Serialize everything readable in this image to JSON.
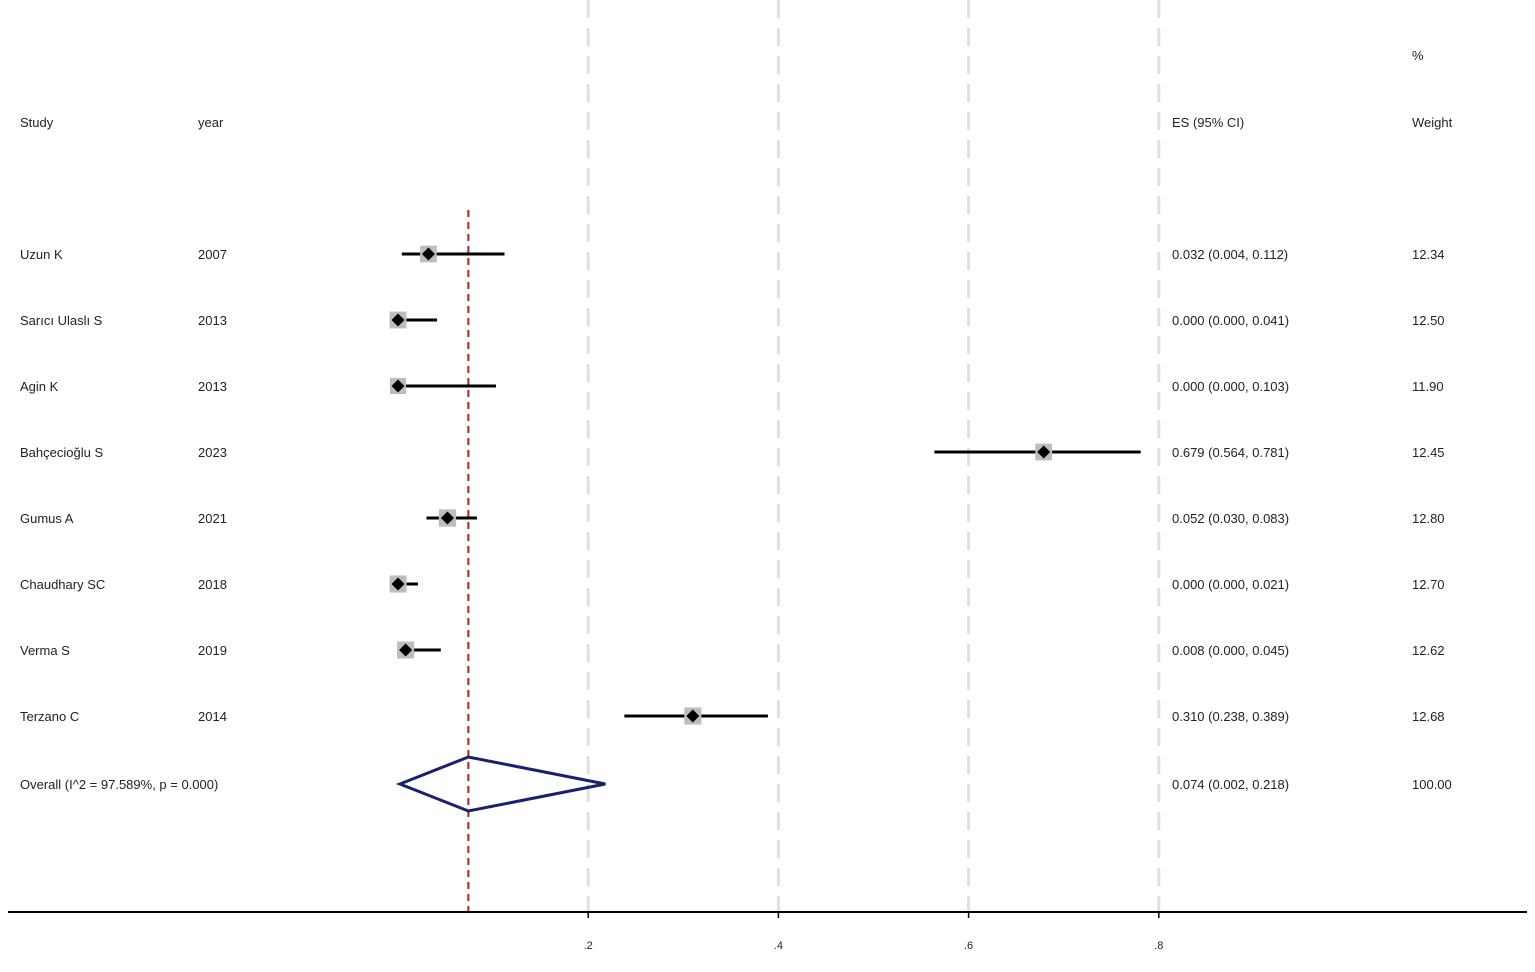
{
  "header": {
    "study": "Study",
    "year": "year",
    "es": "ES (95% CI)",
    "pct": "%",
    "weight": "Weight"
  },
  "chart_data": {
    "type": "forest",
    "xlabel": "",
    "ylabel": "",
    "xlim": [
      0,
      1
    ],
    "ticks": [
      {
        "value": 0.2,
        "label": ".2"
      },
      {
        "value": 0.4,
        "label": ".4"
      },
      {
        "value": 0.6,
        "label": ".6"
      },
      {
        "value": 0.8,
        "label": ".8"
      }
    ],
    "studies": [
      {
        "study": "Uzun K",
        "year": "2007",
        "es": 0.032,
        "lo": 0.004,
        "hi": 0.112,
        "es_text": "0.032 (0.004, 0.112)",
        "weight": "12.34"
      },
      {
        "study": "Sarıcı Ulaslı S",
        "year": "2013",
        "es": 0.0,
        "lo": 0.0,
        "hi": 0.041,
        "es_text": "0.000 (0.000, 0.041)",
        "weight": "12.50"
      },
      {
        "study": "Agin K",
        "year": "2013",
        "es": 0.0,
        "lo": 0.0,
        "hi": 0.103,
        "es_text": "0.000 (0.000, 0.103)",
        "weight": "11.90"
      },
      {
        "study": "Bahçecioğlu S",
        "year": "2023",
        "es": 0.679,
        "lo": 0.564,
        "hi": 0.781,
        "es_text": "0.679 (0.564, 0.781)",
        "weight": "12.45"
      },
      {
        "study": "Gumus A",
        "year": "2021",
        "es": 0.052,
        "lo": 0.03,
        "hi": 0.083,
        "es_text": "0.052 (0.030, 0.083)",
        "weight": "12.80"
      },
      {
        "study": "Chaudhary SC",
        "year": "2018",
        "es": 0.0,
        "lo": 0.0,
        "hi": 0.021,
        "es_text": "0.000 (0.000, 0.021)",
        "weight": "12.70"
      },
      {
        "study": "Verma S",
        "year": "2019",
        "es": 0.008,
        "lo": 0.0,
        "hi": 0.045,
        "es_text": "0.008 (0.000, 0.045)",
        "weight": "12.62"
      },
      {
        "study": "Terzano C",
        "year": "2014",
        "es": 0.31,
        "lo": 0.238,
        "hi": 0.389,
        "es_text": "0.310 (0.238, 0.389)",
        "weight": "12.68"
      }
    ],
    "overall": {
      "label": "Overall  (I^2 = 97.589%, p = 0.000)",
      "es": 0.074,
      "lo": 0.002,
      "hi": 0.218,
      "es_text": "0.074 (0.002, 0.218)",
      "weight": "100.00"
    },
    "colors": {
      "overall_diamond": "#1a1f6e",
      "overall_line": "#b22222",
      "grid": "#e0e0e0",
      "weight_box": "#bdbdbd",
      "marker": "#000000"
    }
  }
}
